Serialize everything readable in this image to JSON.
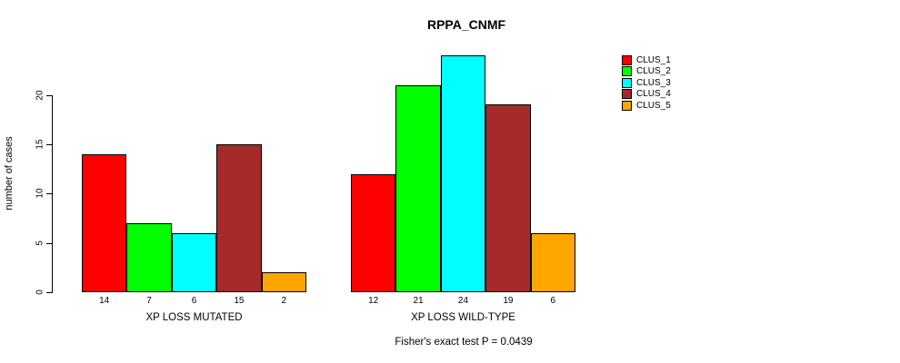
{
  "title": "RPPA_CNMF",
  "footer": "Fisher's exact test P = 0.0439",
  "ylabel": "number of cases",
  "legend": [
    {
      "label": "CLUS_1",
      "color": "#FF0000"
    },
    {
      "label": "CLUS_2",
      "color": "#00FF00"
    },
    {
      "label": "CLUS_3",
      "color": "#00FFFF"
    },
    {
      "label": "CLUS_4",
      "color": "#A52A2A"
    },
    {
      "label": "CLUS_5",
      "color": "#FFA500"
    }
  ],
  "chart_data": {
    "type": "bar",
    "title": "RPPA_CNMF",
    "ylabel": "number of cases",
    "xlabel": "",
    "groups": [
      "XP LOSS MUTATED",
      "XP LOSS WILD-TYPE"
    ],
    "series": [
      {
        "name": "CLUS_1",
        "color": "#FF0000",
        "values": [
          14,
          12
        ]
      },
      {
        "name": "CLUS_2",
        "color": "#00FF00",
        "values": [
          7,
          21
        ]
      },
      {
        "name": "CLUS_3",
        "color": "#00FFFF",
        "values": [
          6,
          24
        ]
      },
      {
        "name": "CLUS_4",
        "color": "#A52A2A",
        "values": [
          15,
          19
        ]
      },
      {
        "name": "CLUS_5",
        "color": "#FFA500",
        "values": [
          2,
          6
        ]
      }
    ],
    "bar_value_labels": [
      [
        14,
        7,
        6,
        15,
        2
      ],
      [
        12,
        21,
        24,
        19,
        6
      ]
    ],
    "yticks": [
      0,
      5,
      10,
      15,
      20
    ],
    "ylim": [
      0,
      24
    ],
    "grid": false,
    "legend_position": "right",
    "annotation": "Fisher's exact test P = 0.0439"
  }
}
